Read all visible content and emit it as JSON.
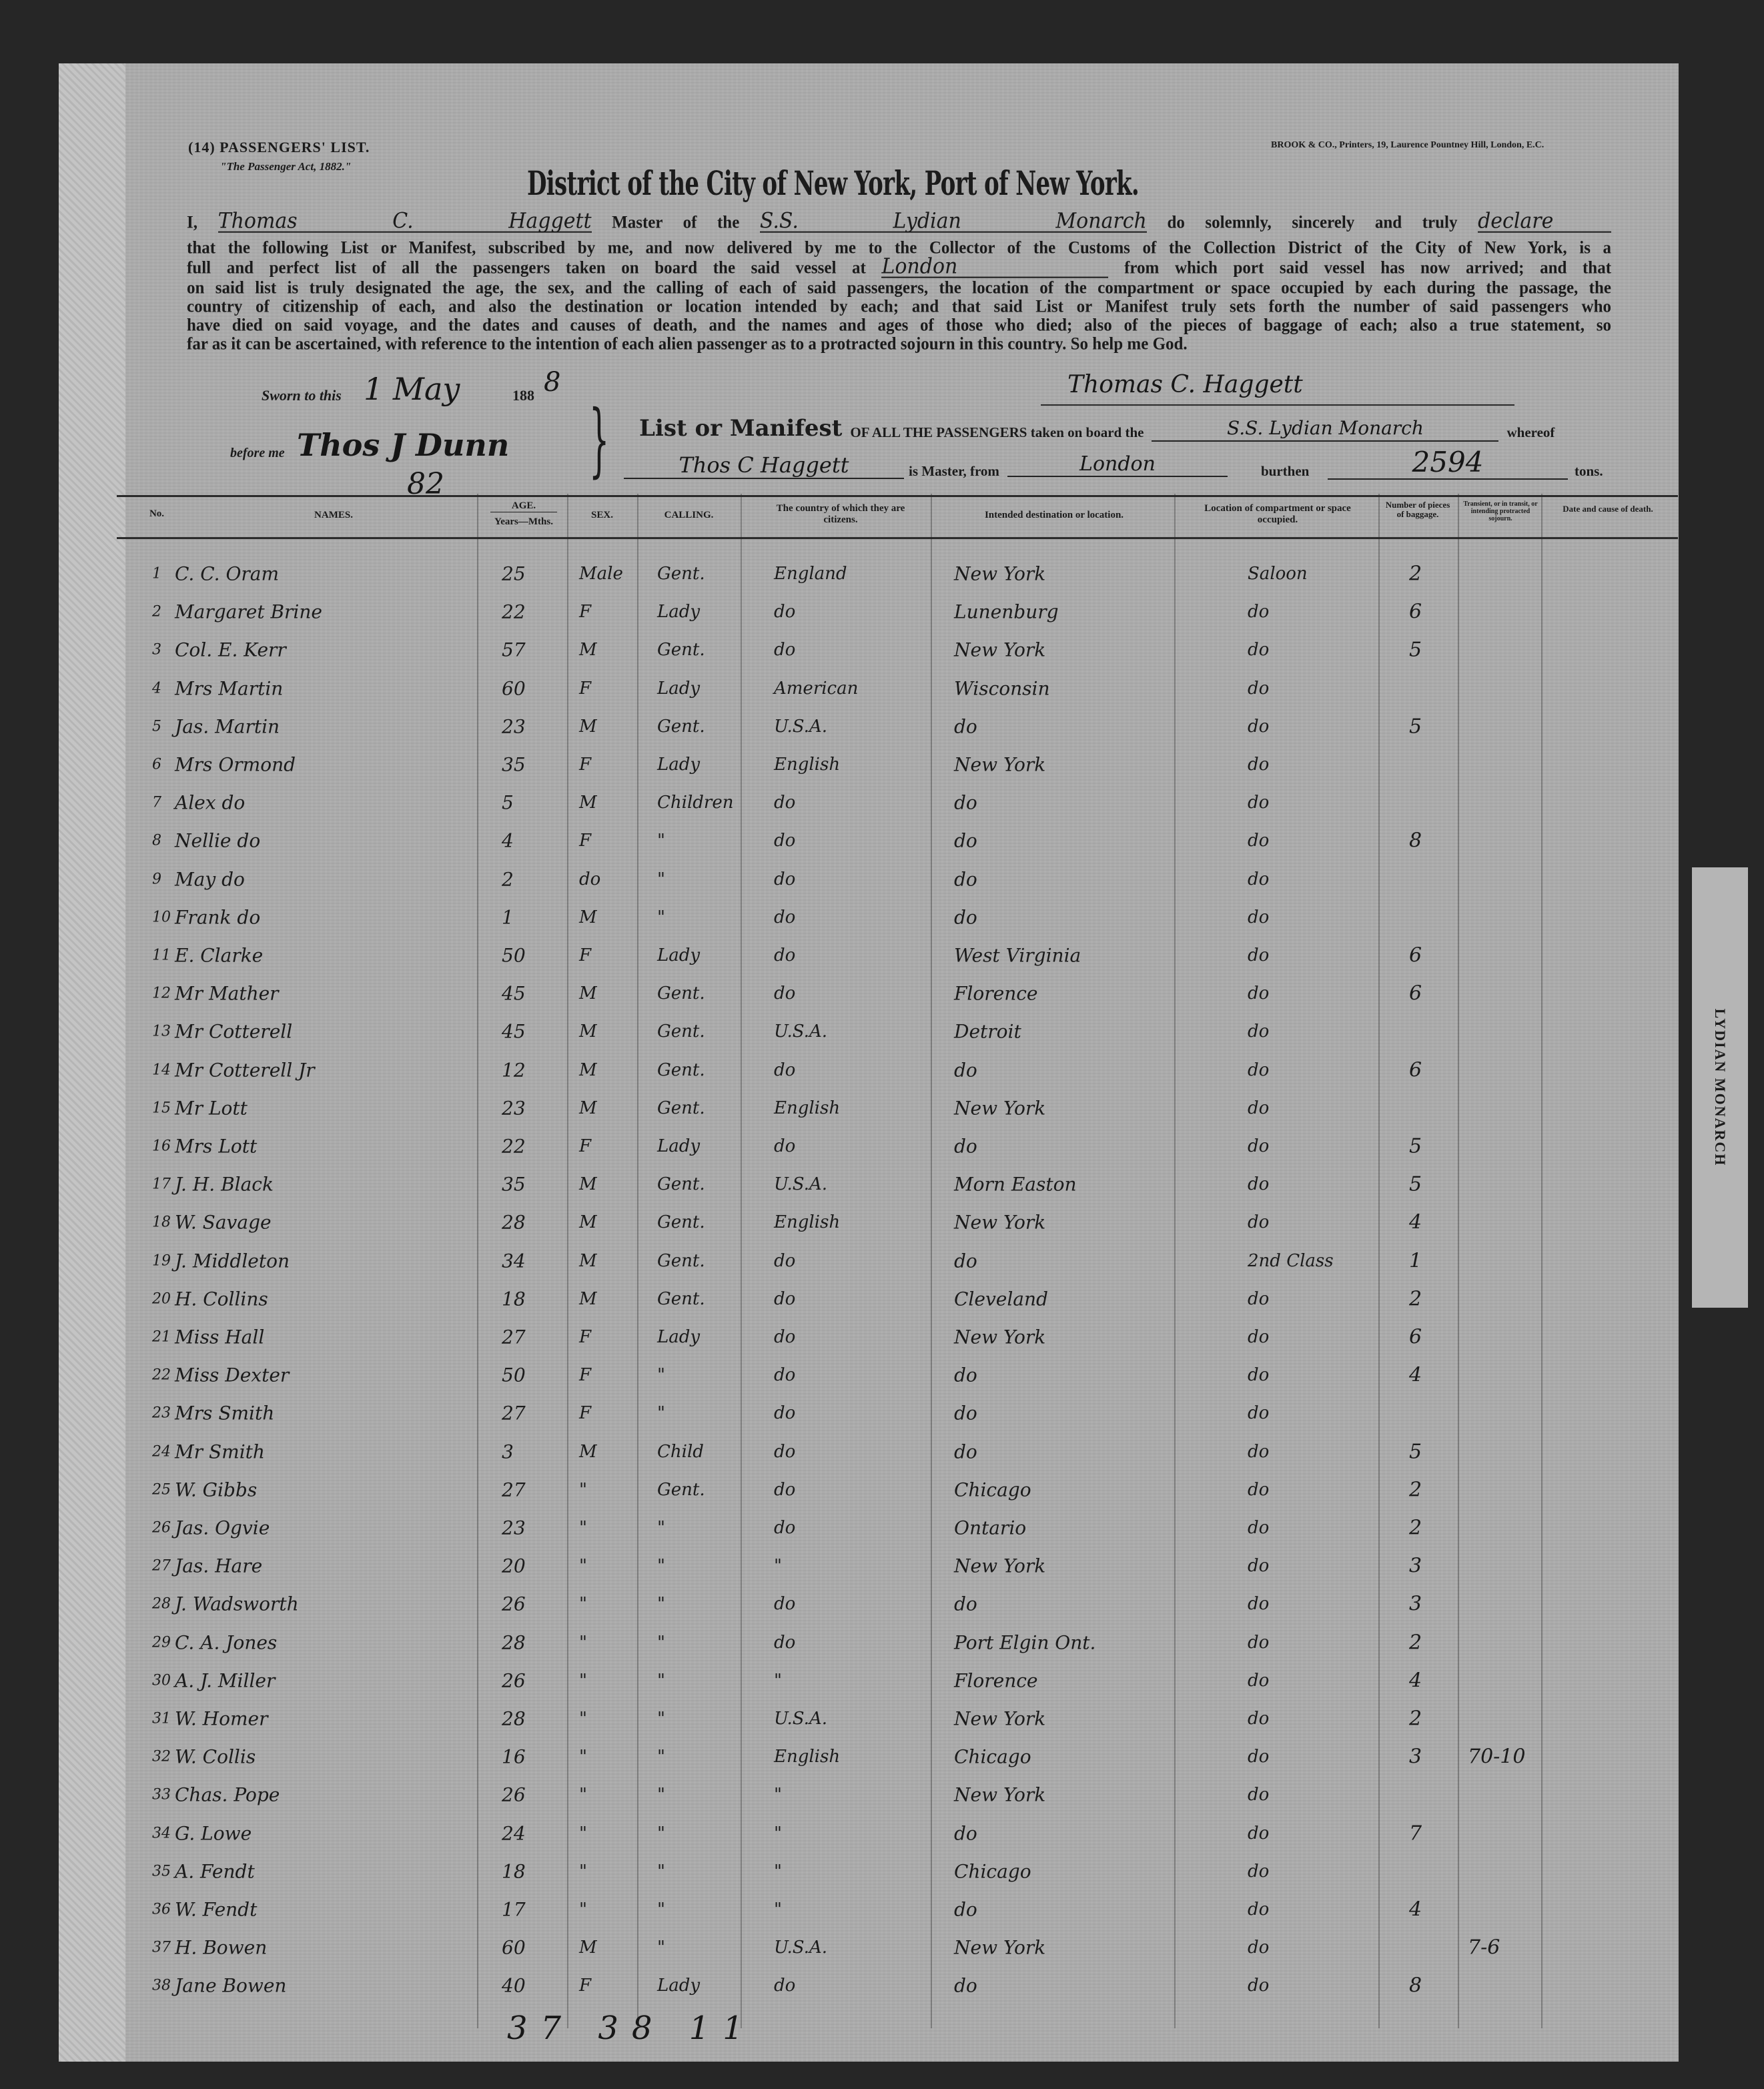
{
  "header": {
    "form_number": "(14) PASSENGERS' LIST.",
    "act": "\"The Passenger Act, 1882.\"",
    "printer": "BROOK & CO., Printers, 19, Laurence Pountney Hill, London, E.C.",
    "title": "District of the City of New York, Port of New York."
  },
  "oath": {
    "prefix": "I,",
    "master_name": "Thomas C. Haggett",
    "master_of": "Master of the",
    "vessel": "S.S. Lydian Monarch",
    "solemnly": "do solemnly, sincerely and truly",
    "declare": "declare",
    "lines": [
      "that the following List or Manifest, subscribed by me, and now delivered by me to the Collector of the Customs of the Collection District of the City of New York, is a",
      "on said list is truly designated the age, the sex, and the calling of each of said passengers, the location of the compartment or space occupied by each during the passage, the",
      "country of citizenship of each, and also the destination or location intended by each; and that said List or Manifest truly sets forth the number of said passengers who",
      "have died on said voyage, and the dates and causes of death, and the names and ages of those who died; also of the pieces of baggage of each; also a true statement, so",
      "far as it can be ascertained, with reference to the intention of each alien passenger as to a protracted sojourn in this country.  So help me God."
    ],
    "line3_start": "full and perfect list of all the passengers taken on board the said vessel at",
    "port": "London",
    "line3_end": "from which port said vessel has now arrived; and that"
  },
  "sworn": {
    "label": "Sworn to this",
    "day_month": "1 May",
    "year_prefix": "188",
    "year_suffix": "8",
    "before_me": "before me",
    "official": "Thos J Dunn",
    "signature": "Thomas C. Haggett",
    "margin_note": "82"
  },
  "manifest": {
    "heading": "List or Manifest",
    "text1": "OF ALL THE PASSENGERS taken on board the",
    "vessel": "S.S. Lydian Monarch",
    "whereof": "whereof",
    "master": "Thos C Haggett",
    "is_master_from": "is Master, from",
    "from_port": "London",
    "burthen_label": "burthen",
    "burthen": "2594",
    "tons": "tons."
  },
  "columns": {
    "no": "No.",
    "names": "NAMES.",
    "age": "AGE.",
    "age_sub": "Years—Mths.",
    "sex": "SEX.",
    "calling": "CALLING.",
    "country": "The country of which they are citizens.",
    "destination": "Intended destination or location.",
    "location": "Location of compartment or space occupied.",
    "baggage": "Number of pieces of baggage.",
    "transient": "Transient, or in transit, or intending protracted sojourn.",
    "death": "Date and cause of death."
  },
  "rows": [
    {
      "no": "1",
      "name": "C. C. Oram",
      "age": "25",
      "sex": "Male",
      "calling": "Gent.",
      "country": "England",
      "destination": "New York",
      "location": "Saloon",
      "baggage": "2"
    },
    {
      "no": "2",
      "name": "Margaret Brine",
      "age": "22",
      "sex": "F",
      "calling": "Lady",
      "country": "do",
      "destination": "Lunenburg",
      "location": "do",
      "baggage": "6"
    },
    {
      "no": "3",
      "name": "Col. E. Kerr",
      "age": "57",
      "sex": "M",
      "calling": "Gent.",
      "country": "do",
      "destination": "New York",
      "location": "do",
      "baggage": "5"
    },
    {
      "no": "4",
      "name": "Mrs Martin",
      "age": "60",
      "sex": "F",
      "calling": "Lady",
      "country": "American",
      "destination": "Wisconsin",
      "location": "do",
      "baggage": ""
    },
    {
      "no": "5",
      "name": "Jas. Martin",
      "age": "23",
      "sex": "M",
      "calling": "Gent.",
      "country": "U.S.A.",
      "destination": "do",
      "location": "do",
      "baggage": "5"
    },
    {
      "no": "6",
      "name": "Mrs Ormond",
      "age": "35",
      "sex": "F",
      "calling": "Lady",
      "country": "English",
      "destination": "New York",
      "location": "do",
      "baggage": ""
    },
    {
      "no": "7",
      "name": "Alex do",
      "age": "5",
      "sex": "M",
      "calling": "Children",
      "country": "do",
      "destination": "do",
      "location": "do",
      "baggage": ""
    },
    {
      "no": "8",
      "name": "Nellie do",
      "age": "4",
      "sex": "F",
      "calling": "\"",
      "country": "do",
      "destination": "do",
      "location": "do",
      "baggage": "8"
    },
    {
      "no": "9",
      "name": "May do",
      "age": "2",
      "sex": "do",
      "calling": "\"",
      "country": "do",
      "destination": "do",
      "location": "do",
      "baggage": ""
    },
    {
      "no": "10",
      "name": "Frank do",
      "age": "1",
      "sex": "M",
      "calling": "\"",
      "country": "do",
      "destination": "do",
      "location": "do",
      "baggage": ""
    },
    {
      "no": "11",
      "name": "E. Clarke",
      "age": "50",
      "sex": "F",
      "calling": "Lady",
      "country": "do",
      "destination": "West Virginia",
      "location": "do",
      "baggage": "6"
    },
    {
      "no": "12",
      "name": "Mr Mather",
      "age": "45",
      "sex": "M",
      "calling": "Gent.",
      "country": "do",
      "destination": "Florence",
      "location": "do",
      "baggage": "6"
    },
    {
      "no": "13",
      "name": "Mr Cotterell",
      "age": "45",
      "sex": "M",
      "calling": "Gent.",
      "country": "U.S.A.",
      "destination": "Detroit",
      "location": "do",
      "baggage": ""
    },
    {
      "no": "14",
      "name": "Mr Cotterell Jr",
      "age": "12",
      "sex": "M",
      "calling": "Gent.",
      "country": "do",
      "destination": "do",
      "location": "do",
      "baggage": "6"
    },
    {
      "no": "15",
      "name": "Mr Lott",
      "age": "23",
      "sex": "M",
      "calling": "Gent.",
      "country": "English",
      "destination": "New York",
      "location": "do",
      "baggage": ""
    },
    {
      "no": "16",
      "name": "Mrs Lott",
      "age": "22",
      "sex": "F",
      "calling": "Lady",
      "country": "do",
      "destination": "do",
      "location": "do",
      "baggage": "5"
    },
    {
      "no": "17",
      "name": "J. H. Black",
      "age": "35",
      "sex": "M",
      "calling": "Gent.",
      "country": "U.S.A.",
      "destination": "Morn Easton",
      "location": "do",
      "baggage": "5"
    },
    {
      "no": "18",
      "name": "W. Savage",
      "age": "28",
      "sex": "M",
      "calling": "Gent.",
      "country": "English",
      "destination": "New York",
      "location": "do",
      "baggage": "4"
    },
    {
      "no": "19",
      "name": "J. Middleton",
      "age": "34",
      "sex": "M",
      "calling": "Gent.",
      "country": "do",
      "destination": "do",
      "location": "2nd Class",
      "baggage": "1"
    },
    {
      "no": "20",
      "name": "H. Collins",
      "age": "18",
      "sex": "M",
      "calling": "Gent.",
      "country": "do",
      "destination": "Cleveland",
      "location": "do",
      "baggage": "2"
    },
    {
      "no": "21",
      "name": "Miss Hall",
      "age": "27",
      "sex": "F",
      "calling": "Lady",
      "country": "do",
      "destination": "New York",
      "location": "do",
      "baggage": "6"
    },
    {
      "no": "22",
      "name": "Miss Dexter",
      "age": "50",
      "sex": "F",
      "calling": "\"",
      "country": "do",
      "destination": "do",
      "location": "do",
      "baggage": "4"
    },
    {
      "no": "23",
      "name": "Mrs Smith",
      "age": "27",
      "sex": "F",
      "calling": "\"",
      "country": "do",
      "destination": "do",
      "location": "do",
      "baggage": ""
    },
    {
      "no": "24",
      "name": "Mr Smith",
      "age": "3",
      "sex": "M",
      "calling": "Child",
      "country": "do",
      "destination": "do",
      "location": "do",
      "baggage": "5"
    },
    {
      "no": "25",
      "name": "W. Gibbs",
      "age": "27",
      "sex": "\"",
      "calling": "Gent.",
      "country": "do",
      "destination": "Chicago",
      "location": "do",
      "baggage": "2"
    },
    {
      "no": "26",
      "name": "Jas. Ogvie",
      "age": "23",
      "sex": "\"",
      "calling": "\"",
      "country": "do",
      "destination": "Ontario",
      "location": "do",
      "baggage": "2"
    },
    {
      "no": "27",
      "name": "Jas. Hare",
      "age": "20",
      "sex": "\"",
      "calling": "\"",
      "country": "\"",
      "destination": "New York",
      "location": "do",
      "baggage": "3"
    },
    {
      "no": "28",
      "name": "J. Wadsworth",
      "age": "26",
      "sex": "\"",
      "calling": "\"",
      "country": "do",
      "destination": "do",
      "location": "do",
      "baggage": "3"
    },
    {
      "no": "29",
      "name": "C. A. Jones",
      "age": "28",
      "sex": "\"",
      "calling": "\"",
      "country": "do",
      "destination": "Port Elgin Ont.",
      "location": "do",
      "baggage": "2"
    },
    {
      "no": "30",
      "name": "A. J. Miller",
      "age": "26",
      "sex": "\"",
      "calling": "\"",
      "country": "\"",
      "destination": "Florence",
      "location": "do",
      "baggage": "4"
    },
    {
      "no": "31",
      "name": "W. Homer",
      "age": "28",
      "sex": "\"",
      "calling": "\"",
      "country": "U.S.A.",
      "destination": "New York",
      "location": "do",
      "baggage": "2"
    },
    {
      "no": "32",
      "name": "W. Collis",
      "age": "16",
      "sex": "\"",
      "calling": "\"",
      "country": "English",
      "destination": "Chicago",
      "location": "do",
      "baggage": "3",
      "transient": "70-10"
    },
    {
      "no": "33",
      "name": "Chas. Pope",
      "age": "26",
      "sex": "\"",
      "calling": "\"",
      "country": "\"",
      "destination": "New York",
      "location": "do",
      "baggage": ""
    },
    {
      "no": "34",
      "name": "G. Lowe",
      "age": "24",
      "sex": "\"",
      "calling": "\"",
      "country": "\"",
      "destination": "do",
      "location": "do",
      "baggage": "7"
    },
    {
      "no": "35",
      "name": "A. Fendt",
      "age": "18",
      "sex": "\"",
      "calling": "\"",
      "country": "\"",
      "destination": "Chicago",
      "location": "do",
      "baggage": ""
    },
    {
      "no": "36",
      "name": "W. Fendt",
      "age": "17",
      "sex": "\"",
      "calling": "\"",
      "country": "\"",
      "destination": "do",
      "location": "do",
      "baggage": "4"
    },
    {
      "no": "37",
      "name": "H. Bowen",
      "age": "60",
      "sex": "M",
      "calling": "\"",
      "country": "U.S.A.",
      "destination": "New York",
      "location": "do",
      "baggage": "",
      "transient": "7-6"
    },
    {
      "no": "38",
      "name": "Jane Bowen",
      "age": "40",
      "sex": "F",
      "calling": "Lady",
      "country": "do",
      "destination": "do",
      "location": "do",
      "baggage": "8"
    }
  ],
  "footer_totals": [
    "37",
    "38",
    "11"
  ],
  "side_tab": "LYDIAN MONARCH"
}
